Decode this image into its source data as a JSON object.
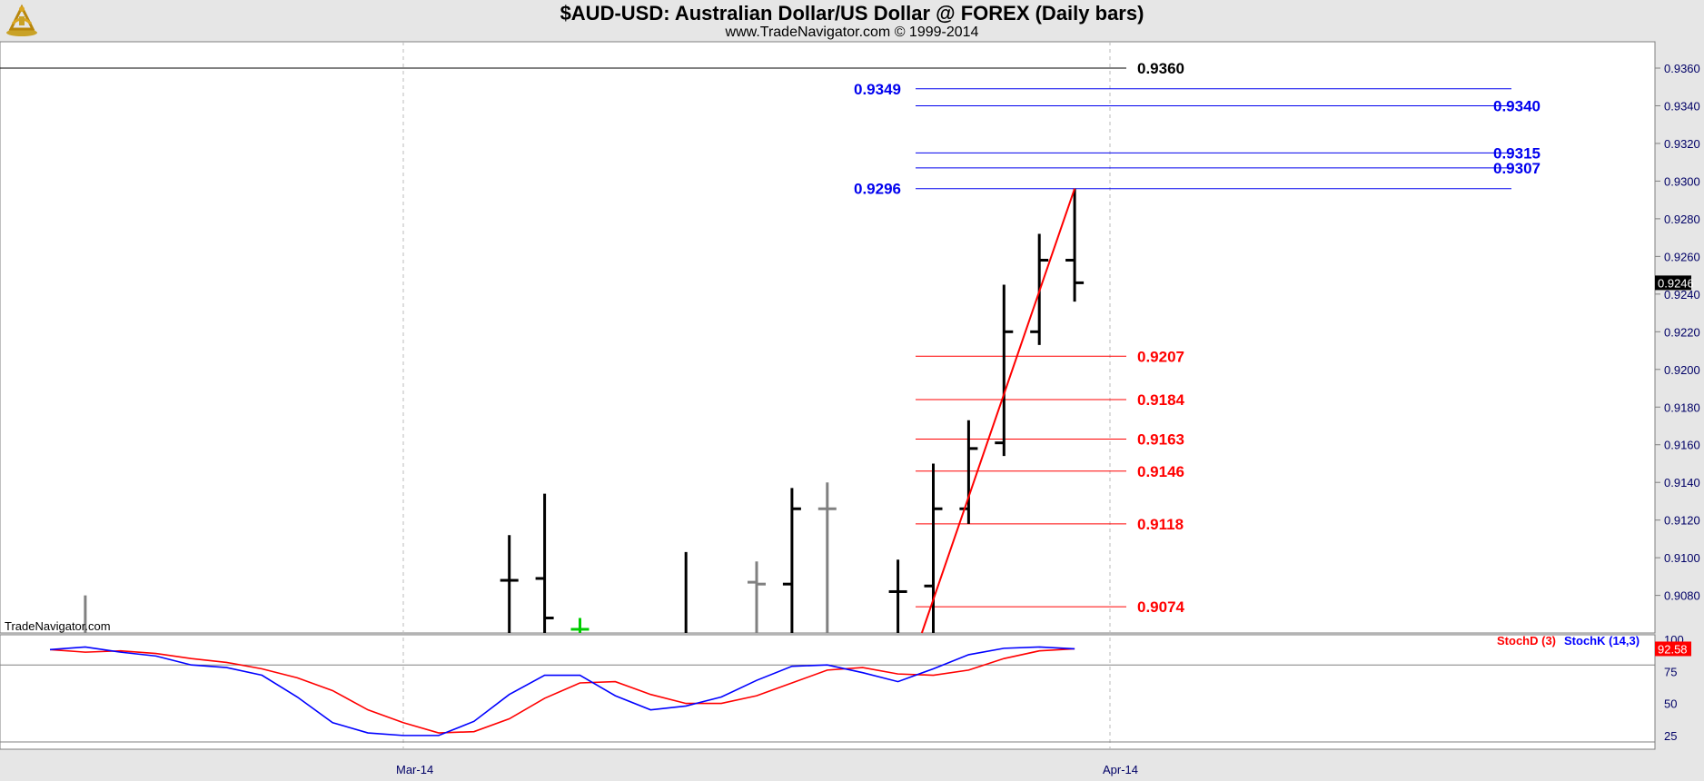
{
  "header": {
    "title": "$AUD-USD:  Australian Dollar/US Dollar @ FOREX  (Daily bars)",
    "subtitle": "www.TradeNavigator.com © 1999-2014",
    "watermark": "TradeNavigator.com",
    "logo_icon": "sextant-logo-icon"
  },
  "colors": {
    "bar": "#000000",
    "bar_gray": "#808080",
    "bar_green": "#00cc00",
    "fib_red": "#ff0000",
    "fib_blue": "#0000ee",
    "stochD": "#ff0000",
    "stochK": "#0000ff",
    "panel_bg": "#ffffff"
  },
  "chart_data": [
    {
      "type": "bar",
      "subtype": "ohlc",
      "ylim": [
        9055,
        9375
      ],
      "yticks": [
        "0.9080",
        "0.9100",
        "0.9120",
        "0.9140",
        "0.9160",
        "0.9180",
        "0.9200",
        "0.9220",
        "0.9240",
        "0.9260",
        "0.9280",
        "0.9300",
        "0.9320",
        "0.9340",
        "0.9360"
      ],
      "xticks": [
        {
          "label": "Mar-14",
          "x": 10
        },
        {
          "label": "Apr-14",
          "x": 30
        }
      ],
      "last_price": "0.9246",
      "bars": [
        {
          "x": 1,
          "high": 9080,
          "low": 9040,
          "open": 9050,
          "close": 9055,
          "color": "gray"
        },
        {
          "x": 13,
          "high": 9112,
          "low": 9040,
          "open": 9088,
          "close": 9088,
          "color": "black"
        },
        {
          "x": 14,
          "high": 9134,
          "low": 9040,
          "open": 9089,
          "close": 9068,
          "color": "black"
        },
        {
          "x": 15,
          "high": 9068,
          "low": 9055,
          "open": 9062,
          "close": 9062,
          "color": "green"
        },
        {
          "x": 18,
          "high": 9103,
          "low": 9040,
          "open": 9060,
          "close": 9060,
          "color": "black"
        },
        {
          "x": 20,
          "high": 9098,
          "low": 9040,
          "open": 9087,
          "close": 9086,
          "color": "gray"
        },
        {
          "x": 21,
          "high": 9137,
          "low": 9040,
          "open": 9086,
          "close": 9126,
          "color": "black"
        },
        {
          "x": 22,
          "high": 9140,
          "low": 9040,
          "open": 9126,
          "close": 9126,
          "color": "gray"
        },
        {
          "x": 24,
          "high": 9099,
          "low": 9040,
          "open": 9082,
          "close": 9082,
          "color": "black"
        },
        {
          "x": 25,
          "high": 9150,
          "low": 9040,
          "open": 9085,
          "close": 9126,
          "color": "black"
        },
        {
          "x": 26,
          "high": 9173,
          "low": 9118,
          "open": 9126,
          "close": 9158,
          "color": "black"
        },
        {
          "x": 27,
          "high": 9245,
          "low": 9154,
          "open": 9161,
          "close": 9220,
          "color": "black"
        },
        {
          "x": 28,
          "high": 9272,
          "low": 9213,
          "open": 9220,
          "close": 9258,
          "color": "black"
        },
        {
          "x": 29,
          "high": 9296,
          "low": 9236,
          "open": 9258,
          "close": 9246,
          "color": "black"
        }
      ],
      "horizontal_lines": [
        {
          "value": 9360,
          "label": "0.9360",
          "color": "black"
        }
      ],
      "trendline": {
        "from": {
          "x": 24.4,
          "y": 9045
        },
        "to": {
          "x": 29,
          "y": 9296
        },
        "color": "red"
      },
      "fib_retracements": [
        {
          "value": 9207,
          "label": "0.9207"
        },
        {
          "value": 9184,
          "label": "0.9184"
        },
        {
          "value": 9163,
          "label": "0.9163"
        },
        {
          "value": 9146,
          "label": "0.9146"
        },
        {
          "value": 9118,
          "label": "0.9118"
        },
        {
          "value": 9074,
          "label": "0.9074"
        }
      ],
      "fib_extensions": [
        {
          "value": 9349,
          "label": "0.9349",
          "side": "left"
        },
        {
          "value": 9340,
          "label": "0.9340",
          "side": "right"
        },
        {
          "value": 9315,
          "label": "0.9315",
          "side": "right"
        },
        {
          "value": 9307,
          "label": "0.9307",
          "side": "right"
        },
        {
          "value": 9296,
          "label": "0.9296",
          "side": "left"
        }
      ]
    },
    {
      "type": "line",
      "ylim": [
        15,
        100
      ],
      "yticks": [
        "25",
        "50",
        "75",
        "100"
      ],
      "reference_lines": [
        80,
        20
      ],
      "last_value": "92.58",
      "x": [
        0,
        1,
        2,
        3,
        4,
        5,
        6,
        7,
        8,
        9,
        10,
        11,
        12,
        13,
        14,
        15,
        16,
        17,
        18,
        19,
        20,
        21,
        22,
        23,
        24,
        25,
        26,
        27,
        28,
        29
      ],
      "series": [
        {
          "name": "StochD (3)",
          "color": "red",
          "values": [
            92,
            90,
            91,
            89,
            85,
            82,
            77,
            70,
            60,
            45,
            35,
            27,
            28,
            38,
            54,
            66,
            67,
            57,
            50,
            50,
            56,
            66,
            76,
            78,
            73,
            72,
            76,
            85,
            91,
            92.6
          ]
        },
        {
          "name": "StochK (14,3)",
          "color": "blue",
          "values": [
            92,
            94,
            90,
            87,
            80,
            78,
            72,
            55,
            35,
            27,
            25,
            25,
            36,
            57,
            72,
            72,
            56,
            45,
            48,
            55,
            68,
            79,
            80,
            74,
            67,
            77,
            88,
            93,
            94,
            92.6
          ]
        }
      ]
    }
  ]
}
